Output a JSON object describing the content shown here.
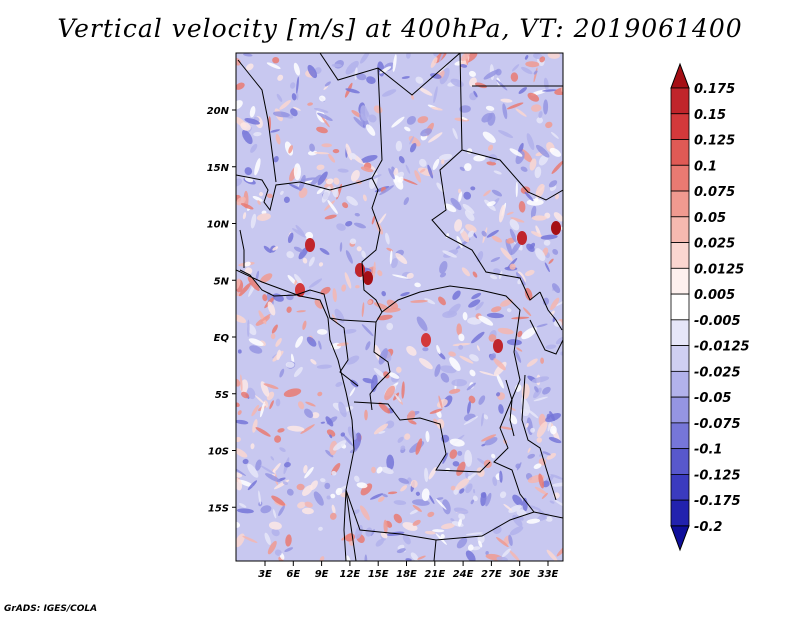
{
  "title": "Vertical velocity [m/s] at 400hPa, VT: 2019061400",
  "credit": "GrADS: IGES/COLA",
  "map": {
    "lat_labels": [
      "20N",
      "15N",
      "10N",
      "5N",
      "EQ",
      "5S",
      "10S",
      "15S"
    ],
    "lon_labels": [
      "3E",
      "6E",
      "9E",
      "12E",
      "15E",
      "18E",
      "21E",
      "24E",
      "27E",
      "30E",
      "33E"
    ]
  },
  "colorbar": {
    "labels": [
      "0.175",
      "0.15",
      "0.125",
      "0.1",
      "0.075",
      "0.05",
      "0.025",
      "0.0125",
      "0.005",
      "-0.005",
      "-0.0125",
      "-0.025",
      "-0.05",
      "-0.075",
      "-0.1",
      "-0.125",
      "-0.175",
      "-0.2"
    ],
    "colors": [
      "#a50f15",
      "#c0252b",
      "#d3393b",
      "#e05a55",
      "#e97a72",
      "#f09a90",
      "#f6b9b0",
      "#fad6d0",
      "#fdf0ee",
      "#ffffff",
      "#e6e6f8",
      "#cfcff2",
      "#b2b2eb",
      "#9595e2",
      "#7676d8",
      "#5858cc",
      "#3b3bbf",
      "#2222ae",
      "#0f0f9b"
    ]
  }
}
